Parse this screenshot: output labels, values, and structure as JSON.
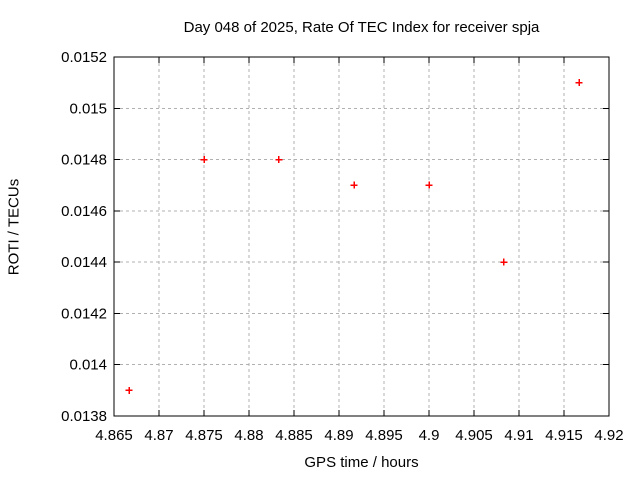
{
  "chart_data": {
    "type": "scatter",
    "title": "Day 048 of 2025, Rate Of TEC Index for receiver spja",
    "xlabel": "GPS time / hours",
    "ylabel": "ROTI / TECUs",
    "xlim": [
      4.865,
      4.92
    ],
    "ylim": [
      0.0138,
      0.0152
    ],
    "x_ticks": [
      4.865,
      4.87,
      4.875,
      4.88,
      4.885,
      4.89,
      4.895,
      4.9,
      4.905,
      4.91,
      4.915,
      4.92
    ],
    "x_tick_labels": [
      "4.865",
      "4.87",
      "4.875",
      "4.88",
      "4.885",
      "4.89",
      "4.895",
      "4.9",
      "4.905",
      "4.91",
      "4.915",
      "4.92"
    ],
    "y_ticks": [
      0.0138,
      0.014,
      0.0142,
      0.0144,
      0.0146,
      0.0148,
      0.015,
      0.0152
    ],
    "y_tick_labels": [
      "0.0138",
      "0.014",
      "0.0142",
      "0.0144",
      "0.0146",
      "0.0148",
      "0.015",
      "0.0152"
    ],
    "grid": true,
    "legend": "none",
    "marker": "plus",
    "marker_color": "#ff0000",
    "grid_color": "#b0b0b0",
    "border_color": "#000000",
    "series": [
      {
        "name": "ROTI",
        "points": [
          {
            "x": 4.866667,
            "y": 0.0139
          },
          {
            "x": 4.875,
            "y": 0.0148
          },
          {
            "x": 4.883333,
            "y": 0.0148
          },
          {
            "x": 4.891667,
            "y": 0.0147
          },
          {
            "x": 4.9,
            "y": 0.0147
          },
          {
            "x": 4.908333,
            "y": 0.0144
          },
          {
            "x": 4.916667,
            "y": 0.0151
          }
        ]
      }
    ]
  }
}
